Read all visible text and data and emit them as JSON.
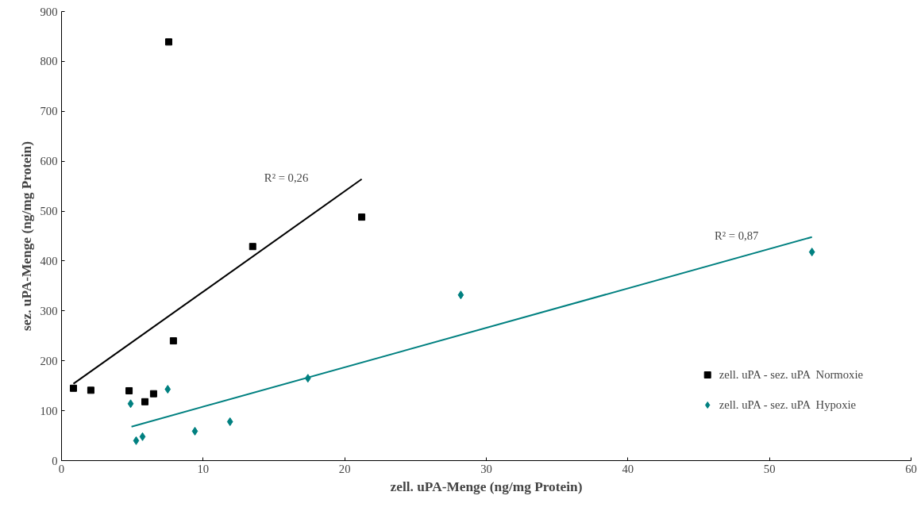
{
  "chart_data": {
    "type": "scatter",
    "xlabel": "zell. uPA-Menge (ng/mg Protein)",
    "ylabel": "sez. uPA-Menge (ng/mg Protein)",
    "xlim": [
      0,
      60
    ],
    "xticks": [
      0,
      10,
      20,
      30,
      40,
      50,
      60
    ],
    "ylim": [
      0,
      900
    ],
    "yticks": [
      0,
      100,
      200,
      300,
      400,
      500,
      600,
      700,
      800,
      900
    ],
    "grid": false,
    "legend": "bottom right",
    "series": [
      {
        "name": "zell. uPA - sez. uPA  Normoxie",
        "color": "#000000",
        "marker": "square",
        "x": [
          0.84,
          2.07,
          4.77,
          5.89,
          6.5,
          7.57,
          7.9,
          13.5,
          21.2
        ],
        "values": [
          145,
          141,
          140,
          118,
          134,
          839,
          240,
          429,
          488
        ]
      },
      {
        "name": "zell. uPA - sez. uPA  Hypoxie",
        "color": "#008080",
        "marker": "diamond",
        "x": [
          4.88,
          5.27,
          5.72,
          7.5,
          9.42,
          11.9,
          17.4,
          28.2,
          53.0
        ],
        "values": [
          114,
          40,
          48,
          143,
          59,
          78,
          165,
          332,
          418
        ]
      },
      {
        "type": "line",
        "color": "#000000",
        "x": [
          0.84,
          21.2
        ],
        "values": [
          154,
          564
        ]
      },
      {
        "type": "line",
        "color": "#008080",
        "x": [
          4.94,
          53.0
        ],
        "values": [
          68,
          448
        ]
      }
    ],
    "annotations": [
      "R² = 0,26",
      "R² = 0,87"
    ]
  }
}
